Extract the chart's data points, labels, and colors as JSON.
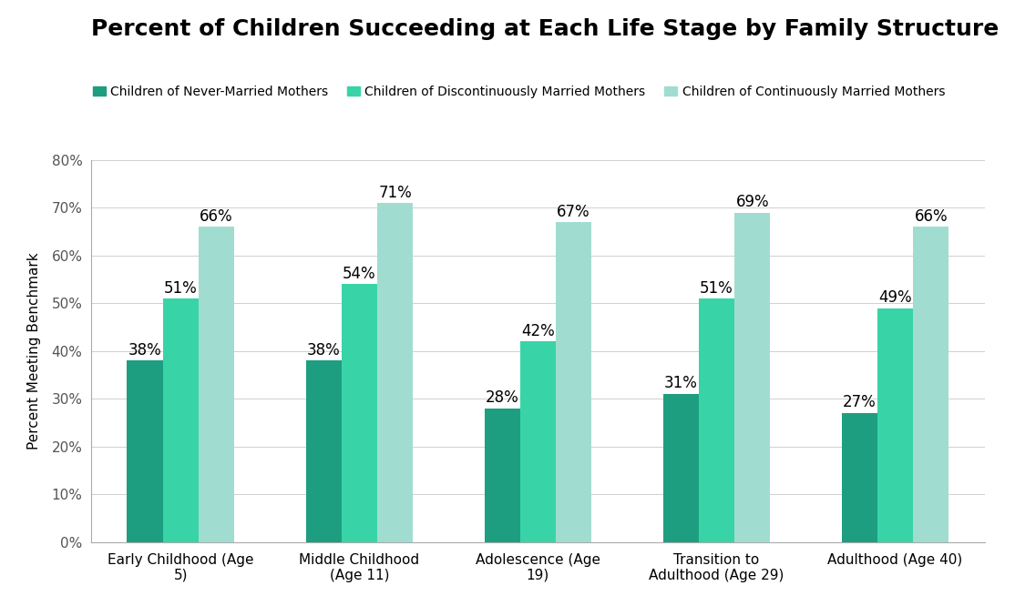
{
  "title": "Percent of Children Succeeding at Each Life Stage by Family Structure",
  "categories": [
    "Early Childhood (Age\n5)",
    "Middle Childhood\n(Age 11)",
    "Adolescence (Age\n19)",
    "Transition to\nAdulthood (Age 29)",
    "Adulthood (Age 40)"
  ],
  "series": [
    {
      "label": "Children of Never-Married Mothers",
      "values": [
        38,
        38,
        28,
        31,
        27
      ],
      "color": "#1e9e80"
    },
    {
      "label": "Children of Discontinuously Married Mothers",
      "values": [
        51,
        54,
        42,
        51,
        49
      ],
      "color": "#38d4a8"
    },
    {
      "label": "Children of Continuously Married Mothers",
      "values": [
        66,
        71,
        67,
        69,
        66
      ],
      "color": "#a0ddd0"
    }
  ],
  "ylabel": "Percent Meeting Benchmark",
  "ylim": [
    0,
    80
  ],
  "yticks": [
    0,
    10,
    20,
    30,
    40,
    50,
    60,
    70,
    80
  ],
  "ytick_labels": [
    "0%",
    "10%",
    "20%",
    "30%",
    "40%",
    "50%",
    "60%",
    "70%",
    "80%"
  ],
  "background_color": "#ffffff",
  "bar_width": 0.2,
  "title_fontsize": 18,
  "label_fontsize": 11,
  "tick_fontsize": 11,
  "value_fontsize": 12,
  "legend_fontsize": 10
}
